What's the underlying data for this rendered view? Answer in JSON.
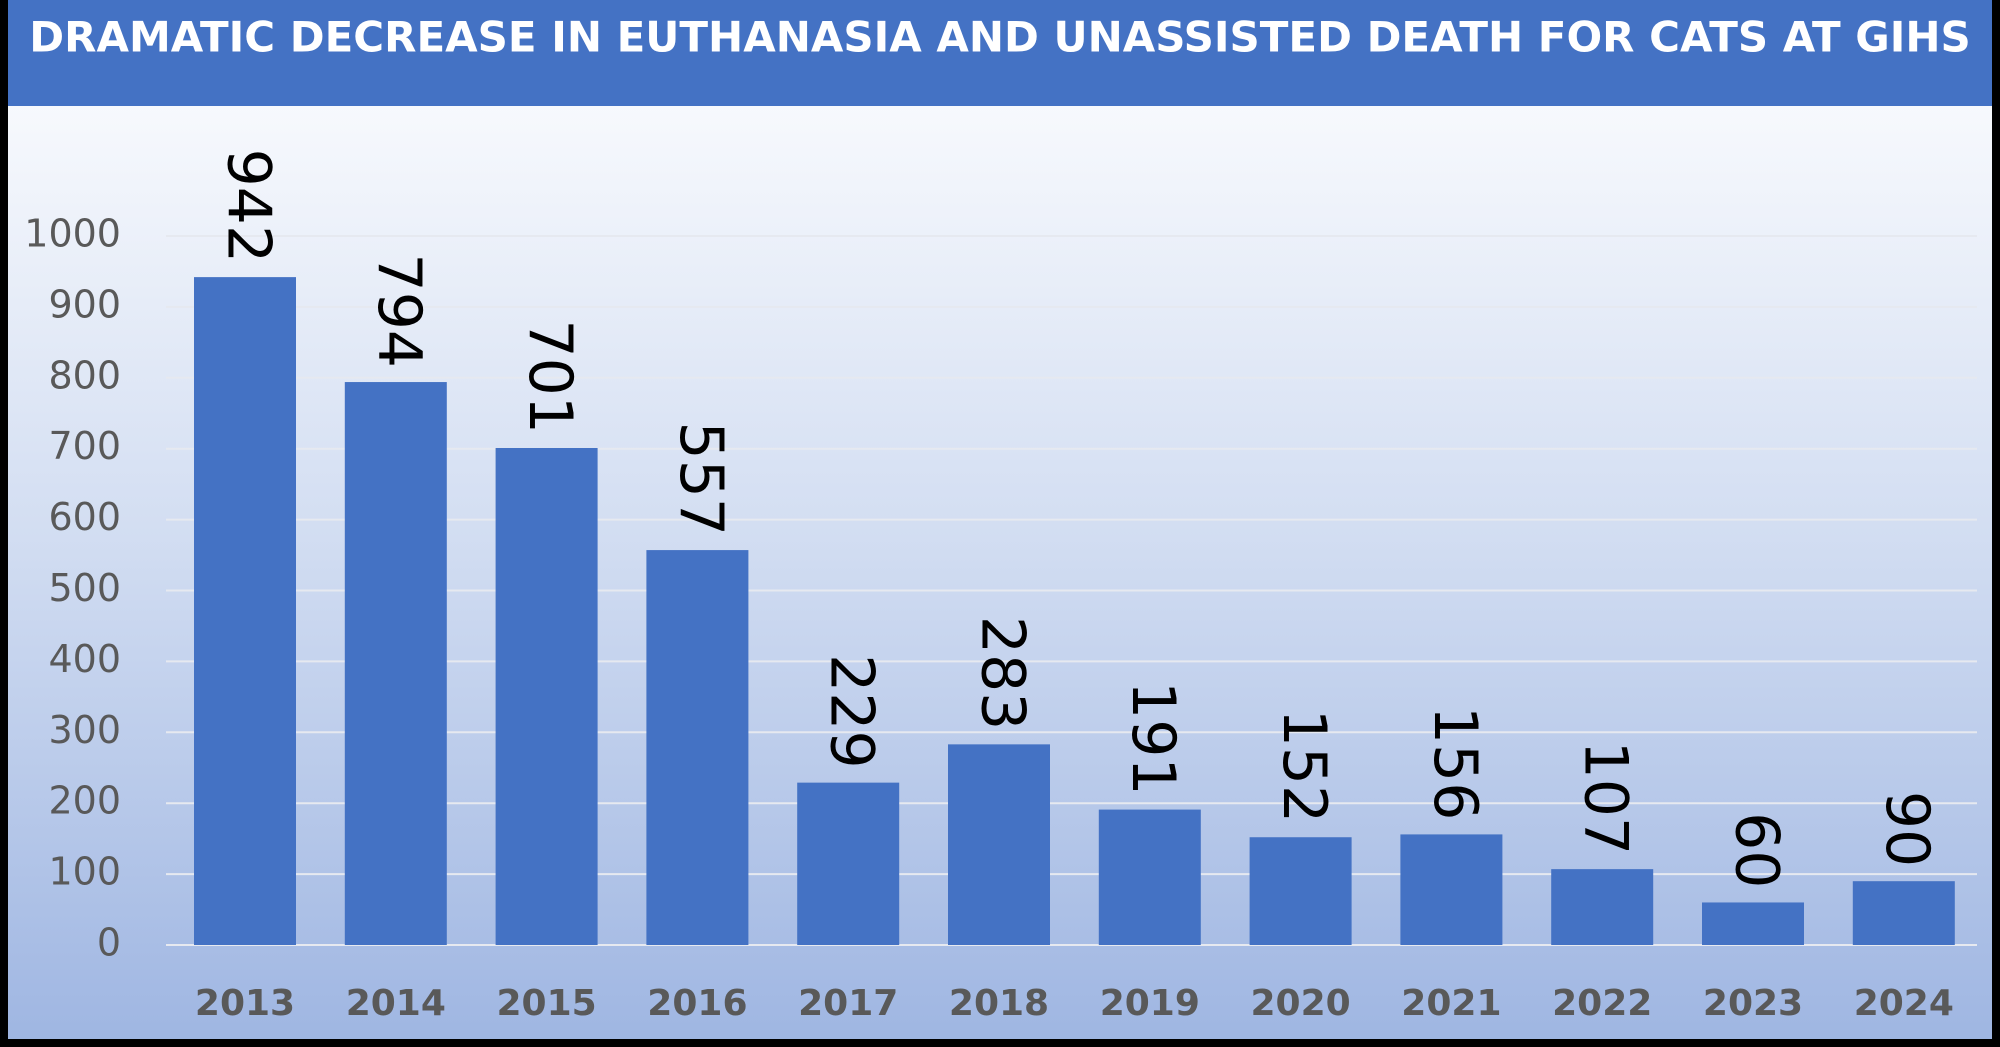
{
  "chart_data": {
    "type": "bar",
    "title": "DRAMATIC DECREASE IN EUTHANASIA AND UNASSISTED DEATH FOR CATS AT GIHS",
    "categories": [
      "2013",
      "2014",
      "2015",
      "2016",
      "2017",
      "2018",
      "2019",
      "2020",
      "2021",
      "2022",
      "2023",
      "2024"
    ],
    "values": [
      942,
      794,
      701,
      557,
      229,
      283,
      191,
      152,
      156,
      107,
      60,
      90
    ],
    "color": "#4472c4",
    "ylim": [
      0,
      1000
    ],
    "yticks": [
      0,
      100,
      200,
      300,
      400,
      500,
      600,
      700,
      800,
      900,
      1000
    ],
    "grid": true
  }
}
